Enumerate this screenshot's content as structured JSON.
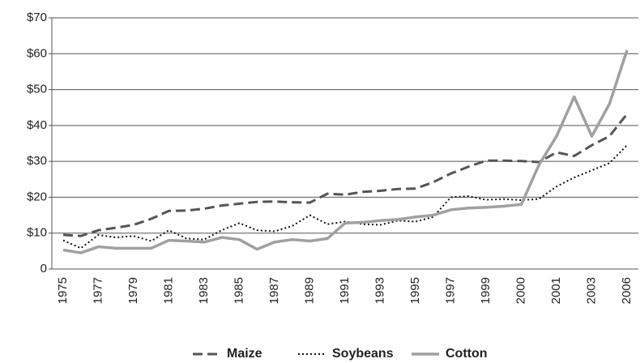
{
  "chart_data": {
    "type": "line",
    "categories": [
      "1975",
      null,
      "1977",
      null,
      "1979",
      null,
      "1981",
      null,
      "1983",
      null,
      "1985",
      null,
      "1987",
      null,
      "1989",
      null,
      "1991",
      null,
      "1993",
      null,
      "1995",
      null,
      "1997",
      null,
      "1999",
      null,
      "2000",
      null,
      "2001",
      null,
      "2003",
      null,
      "2006"
    ],
    "series": [
      {
        "name": "Maize",
        "color": "#555555",
        "dash": "dashed",
        "values": [
          9.5,
          9.2,
          10.8,
          11.5,
          12.3,
          14,
          16.2,
          16.3,
          16.8,
          17.7,
          18.2,
          18.7,
          18.8,
          18.6,
          18.5,
          21,
          20.7,
          21.5,
          21.8,
          22.3,
          22.4,
          24.2,
          26.6,
          28.5,
          30.2,
          30.2,
          30.1,
          29.8,
          32.5,
          31.5,
          34.5,
          37,
          43.2
        ]
      },
      {
        "name": "Soybeans",
        "color": "#111111",
        "dash": "dotted",
        "values": [
          8,
          5.8,
          9.5,
          8.8,
          9.2,
          7.8,
          10.8,
          8.5,
          8.2,
          10.8,
          12.8,
          10.8,
          10.5,
          12,
          15,
          12.5,
          13.2,
          12.5,
          12.3,
          13.5,
          13.2,
          14.5,
          20,
          20.3,
          19.3,
          19.5,
          19.2,
          19.5,
          23,
          25.5,
          27.5,
          29.5,
          34.5
        ]
      },
      {
        "name": "Cotton",
        "color": "#a0a0a0",
        "dash": "solid",
        "values": [
          5.3,
          4.5,
          6.2,
          5.8,
          5.8,
          5.8,
          8,
          7.8,
          7.5,
          8.8,
          8.2,
          5.5,
          7.5,
          8.2,
          7.8,
          8.5,
          12.8,
          13,
          13.5,
          13.8,
          14.5,
          15,
          16.5,
          17,
          17.2,
          17.5,
          18,
          29,
          37,
          48,
          37,
          46,
          61
        ]
      }
    ],
    "ylim": [
      0,
      70
    ],
    "yticks": [
      {
        "value": 0,
        "label": "0"
      },
      {
        "value": 10,
        "label": "$10"
      },
      {
        "value": 20,
        "label": "$20"
      },
      {
        "value": 30,
        "label": "$30"
      },
      {
        "value": 40,
        "label": "$40"
      },
      {
        "value": 50,
        "label": "$50"
      },
      {
        "value": 60,
        "label": "$60"
      },
      {
        "value": 70,
        "label": "$70"
      }
    ],
    "grid": true,
    "legend": "bottom"
  }
}
